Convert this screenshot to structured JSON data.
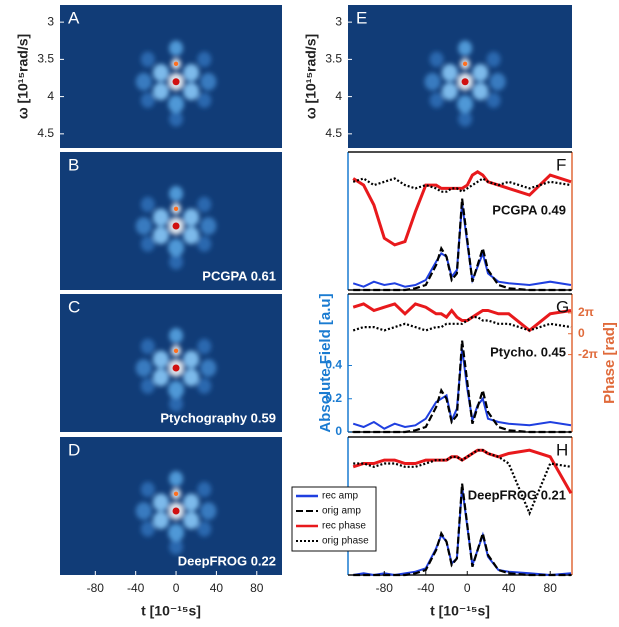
{
  "chart_data": [
    {
      "type": "heatmap",
      "label": "A",
      "xlim": [
        -115,
        105
      ],
      "ylim": [
        2.77,
        4.69
      ],
      "yticks": [
        3,
        3.5,
        4,
        4.5
      ],
      "ylabel": "ω [10¹⁵rad/s]"
    },
    {
      "type": "heatmap",
      "label": "B",
      "xlim": [
        -115,
        105
      ],
      "ylim": [
        2.77,
        4.69
      ],
      "annotation": "PCGPA 0.61"
    },
    {
      "type": "heatmap",
      "label": "C",
      "xlim": [
        -115,
        105
      ],
      "ylim": [
        2.77,
        4.69
      ],
      "annotation": "Ptychography 0.59"
    },
    {
      "type": "heatmap",
      "label": "D",
      "xlim": [
        -115,
        105
      ],
      "ylim": [
        2.77,
        4.69
      ],
      "annotation": "DeepFROG 0.22",
      "xticks": [
        -80,
        -40,
        0,
        40,
        80
      ],
      "xlabel": "t [10⁻¹⁵s]"
    },
    {
      "type": "heatmap",
      "label": "E",
      "xlim": [
        -115,
        105
      ],
      "ylim": [
        2.77,
        4.69
      ],
      "yticks": [
        3,
        3.5,
        4,
        4.5
      ],
      "ylabel": "ω [10¹⁵rad/s]"
    },
    {
      "type": "line",
      "label": "F",
      "annotation": "PCGPA 0.49",
      "xlim": [
        -115,
        101
      ],
      "ylim": [
        0,
        0.83
      ],
      "y2lim": [
        -29.6,
        11.97
      ],
      "x": [
        -110,
        -100,
        -90,
        -80,
        -70,
        -60,
        -50,
        -40,
        -30,
        -25,
        -20,
        -15,
        -10,
        -5,
        0,
        5,
        10,
        15,
        20,
        30,
        40,
        60,
        80,
        100
      ],
      "series": [
        {
          "name": "rec amp",
          "color": "#1f3fe0",
          "linestyle": "solid",
          "values": [
            0.04,
            0.02,
            0.05,
            0.03,
            0.04,
            0.02,
            0.03,
            0.06,
            0.17,
            0.22,
            0.2,
            0.08,
            0.12,
            0.52,
            0.28,
            0.06,
            0.14,
            0.22,
            0.1,
            0.05,
            0.04,
            0.03,
            0.05,
            0.03
          ]
        },
        {
          "name": "orig amp",
          "color": "#000000",
          "linestyle": "dashed",
          "values": [
            0,
            0,
            0,
            0,
            0,
            0,
            0.01,
            0.03,
            0.15,
            0.25,
            0.2,
            0.06,
            0.1,
            0.55,
            0.3,
            0.05,
            0.15,
            0.25,
            0.12,
            0.03,
            0.01,
            0,
            0,
            0
          ]
        },
        {
          "name": "rec phase",
          "color": "#e8191c",
          "linestyle": "solid",
          "axis": "y2",
          "values": [
            4,
            2,
            -4,
            -14,
            -16,
            -15,
            -6,
            2,
            2,
            1,
            1,
            1,
            1,
            1,
            2,
            5,
            6,
            5,
            3,
            2,
            1,
            -1,
            5,
            3
          ]
        },
        {
          "name": "orig phase",
          "color": "#000000",
          "linestyle": "dotted",
          "axis": "y2",
          "values": [
            3,
            4,
            2,
            3,
            4,
            2,
            1,
            2,
            1,
            0,
            0,
            1,
            1,
            0,
            1,
            2,
            3,
            4,
            3,
            2,
            3,
            1,
            3,
            2
          ]
        }
      ]
    },
    {
      "type": "line",
      "label": "G",
      "annotation": "Ptycho. 0.45",
      "xlim": [
        -115,
        101
      ],
      "ylim": [
        0,
        0.83
      ],
      "y2lim": [
        -29.6,
        11.97
      ],
      "yticks": [
        0,
        0.2,
        0.4
      ],
      "y2ticks": [
        {
          "value": 6.283,
          "label": "2π"
        },
        0,
        {
          "value": -6.283,
          "label": "-2π"
        }
      ],
      "ylabel": "Absolute Field [a.u]",
      "y2label": "Phase [rad]",
      "x": [
        -110,
        -100,
        -90,
        -80,
        -70,
        -60,
        -50,
        -40,
        -30,
        -25,
        -20,
        -15,
        -10,
        -5,
        0,
        5,
        10,
        15,
        20,
        30,
        40,
        60,
        80,
        100
      ],
      "series": [
        {
          "name": "rec amp",
          "color": "#1f3fe0",
          "linestyle": "solid",
          "values": [
            0.05,
            0.03,
            0.06,
            0.02,
            0.05,
            0.03,
            0.04,
            0.08,
            0.18,
            0.2,
            0.22,
            0.07,
            0.14,
            0.5,
            0.26,
            0.07,
            0.16,
            0.2,
            0.08,
            0.06,
            0.05,
            0.04,
            0.06,
            0.04
          ]
        },
        {
          "name": "orig amp",
          "color": "#000000",
          "linestyle": "dashed",
          "values": [
            0,
            0,
            0,
            0,
            0,
            0,
            0.01,
            0.03,
            0.15,
            0.25,
            0.2,
            0.06,
            0.1,
            0.55,
            0.3,
            0.05,
            0.15,
            0.25,
            0.12,
            0.03,
            0.01,
            0,
            0,
            0
          ]
        },
        {
          "name": "rec phase",
          "color": "#e8191c",
          "linestyle": "solid",
          "axis": "y2",
          "values": [
            8,
            9,
            7,
            8,
            9,
            6,
            9,
            8,
            6,
            6,
            5,
            7,
            5,
            4,
            4,
            5,
            6,
            7,
            7,
            6,
            6,
            1,
            6,
            7
          ]
        },
        {
          "name": "orig phase",
          "color": "#000000",
          "linestyle": "dotted",
          "axis": "y2",
          "values": [
            1,
            2,
            2,
            1,
            2,
            3,
            2,
            1,
            2,
            2,
            3,
            3,
            3,
            3,
            4,
            5,
            5,
            4,
            4,
            3,
            3,
            1,
            3,
            2
          ]
        }
      ]
    },
    {
      "type": "line",
      "label": "H",
      "annotation": "DeepFROG 0.21",
      "xlim": [
        -115,
        101
      ],
      "ylim": [
        0,
        0.83
      ],
      "y2lim": [
        -29.6,
        11.97
      ],
      "xticks": [
        -80,
        -40,
        0,
        40,
        80
      ],
      "xlabel": "t [10⁻¹⁵s]",
      "legend": true,
      "x": [
        -110,
        -100,
        -90,
        -80,
        -70,
        -60,
        -50,
        -40,
        -30,
        -25,
        -20,
        -15,
        -10,
        -5,
        0,
        5,
        10,
        15,
        20,
        30,
        40,
        60,
        80,
        100
      ],
      "series": [
        {
          "name": "rec amp",
          "color": "#1f3fe0",
          "linestyle": "solid",
          "values": [
            0,
            0.01,
            0,
            0.01,
            0,
            0.01,
            0.02,
            0.04,
            0.16,
            0.24,
            0.2,
            0.07,
            0.1,
            0.53,
            0.29,
            0.06,
            0.15,
            0.24,
            0.11,
            0.03,
            0.02,
            0.01,
            0,
            0.01
          ]
        },
        {
          "name": "orig amp",
          "color": "#000000",
          "linestyle": "dashed",
          "values": [
            0,
            0,
            0,
            0,
            0,
            0,
            0.01,
            0.03,
            0.15,
            0.25,
            0.2,
            0.06,
            0.1,
            0.55,
            0.3,
            0.05,
            0.15,
            0.25,
            0.12,
            0.03,
            0.01,
            0,
            0,
            0
          ]
        },
        {
          "name": "rec phase",
          "color": "#e8191c",
          "linestyle": "solid",
          "axis": "y2",
          "values": [
            3,
            4,
            4,
            5,
            5,
            4,
            4,
            5,
            5,
            5,
            5,
            6,
            6,
            5,
            6,
            7,
            8,
            8,
            7,
            6,
            7,
            8,
            6,
            -5
          ]
        },
        {
          "name": "orig phase",
          "color": "#000000",
          "linestyle": "dotted",
          "axis": "y2",
          "values": [
            4,
            4,
            3,
            4,
            4,
            3,
            3,
            4,
            5,
            5,
            5,
            6,
            6,
            5,
            6,
            7,
            8,
            8,
            7,
            6,
            4,
            -11,
            4,
            3
          ]
        }
      ]
    }
  ]
}
